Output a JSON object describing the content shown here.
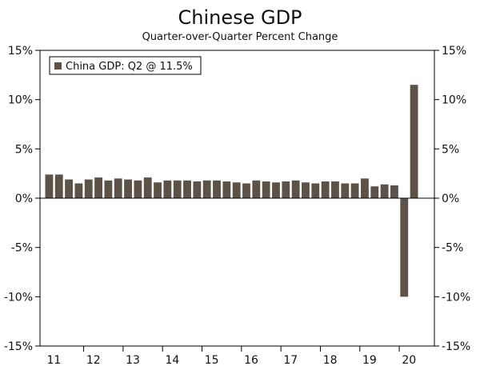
{
  "chart_data": {
    "type": "bar",
    "title": "Chinese GDP",
    "subtitle": "Quarter-over-Quarter Percent Change",
    "ylim": [
      -15,
      15
    ],
    "y_ticks": [
      15,
      10,
      5,
      0,
      -5,
      -10,
      -15
    ],
    "y_tick_labels": [
      "15%",
      "10%",
      "5%",
      "0%",
      "-5%",
      "-10%",
      "-15%"
    ],
    "x_year_labels": [
      "11",
      "12",
      "13",
      "14",
      "15",
      "16",
      "17",
      "18",
      "19",
      "20"
    ],
    "x_first_quarter": "2011 Q1",
    "series": [
      {
        "name": "China GDP: Q2 @ 11.5%",
        "color": "#5c5248",
        "values": [
          2.4,
          2.4,
          1.9,
          1.5,
          1.9,
          2.1,
          1.8,
          2.0,
          1.9,
          1.8,
          2.1,
          1.6,
          1.8,
          1.8,
          1.8,
          1.7,
          1.8,
          1.8,
          1.7,
          1.6,
          1.5,
          1.8,
          1.7,
          1.6,
          1.7,
          1.8,
          1.6,
          1.5,
          1.7,
          1.7,
          1.5,
          1.5,
          2.0,
          1.2,
          1.4,
          1.3,
          -10.0,
          11.5
        ]
      }
    ],
    "legend_label": "China GDP: Q2 @ 11.5%",
    "legend_position": "top-left",
    "grid": false
  }
}
